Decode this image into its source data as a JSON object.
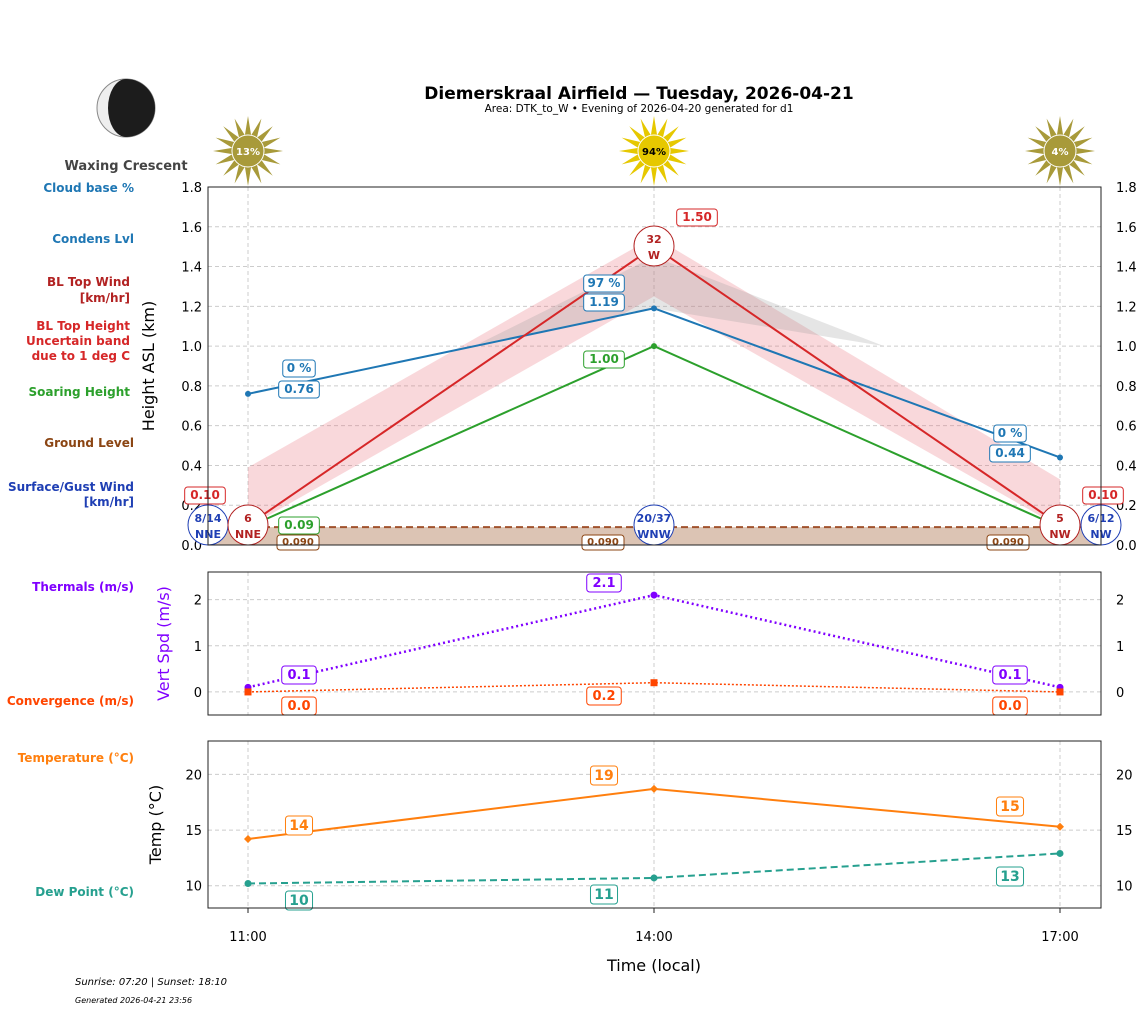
{
  "header": {
    "title": "Diemerskraal Airfield — Tuesday, 2026-04-21",
    "subtitle": "Area: DTK_to_W • Evening of 2026-04-20 generated for d1"
  },
  "moon": {
    "phase": "Waxing Crescent"
  },
  "footer": {
    "sun_times": "Sunrise: 07:20 | Sunset: 18:10",
    "generated": "Generated 2026-04-21 23:56"
  },
  "legend_labels": {
    "cloud_base": "Cloud base %",
    "condens": "Condens Lvl",
    "bl_wind": [
      "BL Top Wind",
      "[km/hr]"
    ],
    "bl_height": [
      "BL Top Height",
      "Uncertain band",
      "due to 1 deg C"
    ],
    "soaring": "Soaring Height",
    "ground": "Ground Level",
    "surface_wind": [
      "Surface/Gust Wind",
      "[km/hr]"
    ],
    "thermals": "Thermals (m/s)",
    "convergence": "Convergence (m/s)",
    "temperature": "Temperature (°C)",
    "dewpoint": "Dew Point (°C)"
  },
  "colors": {
    "cloud": "#1f77b4",
    "bl_wind": "#b22222",
    "bl_height": "#d62728",
    "soaring": "#2ca02c",
    "ground": "#8b4513",
    "surface_wind": "#1f3fb4",
    "thermals": "#8000ff",
    "convergence": "#ff4500",
    "temperature": "#ff7f0e",
    "dewpoint": "#26a08f"
  },
  "chart_data": [
    {
      "type": "line",
      "ylabel": "Height ASL (km)",
      "ylim": [
        0,
        1.8
      ],
      "yticks": [
        "0.0",
        "0.2",
        "0.4",
        "0.6",
        "0.8",
        "1.0",
        "1.2",
        "1.4",
        "1.6",
        "1.8"
      ],
      "grid": true,
      "x": [
        "11:00",
        "14:00",
        "17:00"
      ],
      "sun_percent": [
        "13%",
        "94%",
        "4%"
      ],
      "series": [
        {
          "name": "Condens Lvl",
          "values": [
            0.76,
            1.19,
            0.44
          ],
          "labels": [
            "0.76",
            "1.19",
            "0.44"
          ],
          "cloud_pct": [
            "0 %",
            "97 %",
            "0 %"
          ]
        },
        {
          "name": "BL Top Height",
          "values": [
            0.1,
            1.5,
            0.1
          ],
          "labels": [
            "0.10",
            "1.50",
            "0.10"
          ],
          "band_low": [
            0.09,
            1.25,
            0.09
          ],
          "band_high": [
            0.39,
            1.55,
            0.33
          ]
        },
        {
          "name": "Soaring Height",
          "values": [
            0.09,
            1.0,
            0.09
          ],
          "labels": [
            "0.09",
            "1.00",
            ""
          ]
        },
        {
          "name": "Ground Level",
          "values": [
            0.09,
            0.09,
            0.09
          ],
          "labels": [
            "0.090",
            "0.090",
            "0.090"
          ]
        }
      ],
      "bl_wind": [
        {
          "speed": "6",
          "dir": "NNE"
        },
        {
          "speed": "32",
          "dir": "W"
        },
        {
          "speed": "5",
          "dir": "NW"
        }
      ],
      "surface_wind": [
        {
          "speed": "8/14",
          "dir": "NNE"
        },
        {
          "speed": "20/37",
          "dir": "WNW"
        },
        {
          "speed": "6/12",
          "dir": "NW"
        }
      ]
    },
    {
      "type": "line",
      "ylabel": "Vert Spd (m/s)",
      "ylim": [
        -0.5,
        2.6
      ],
      "yticks": [
        "0",
        "1",
        "2"
      ],
      "grid": true,
      "x": [
        "11:00",
        "14:00",
        "17:00"
      ],
      "series": [
        {
          "name": "Thermals (m/s)",
          "values": [
            0.1,
            2.1,
            0.1
          ],
          "labels": [
            "0.1",
            "2.1",
            "0.1"
          ]
        },
        {
          "name": "Convergence (m/s)",
          "values": [
            0.0,
            0.2,
            0.0
          ],
          "labels": [
            "0.0",
            "0.2",
            "0.0"
          ]
        }
      ]
    },
    {
      "type": "line",
      "ylabel": "Temp (°C)",
      "xlabel": "Time (local)",
      "ylim": [
        8,
        23
      ],
      "yticks": [
        "10",
        "15",
        "20"
      ],
      "grid": true,
      "x": [
        "11:00",
        "14:00",
        "17:00"
      ],
      "series": [
        {
          "name": "Temperature (°C)",
          "values": [
            14.2,
            18.7,
            15.3
          ],
          "labels": [
            "14",
            "19",
            "15"
          ]
        },
        {
          "name": "Dew Point (°C)",
          "values": [
            10.2,
            10.7,
            12.9
          ],
          "labels": [
            "10",
            "11",
            "13"
          ]
        }
      ]
    }
  ]
}
